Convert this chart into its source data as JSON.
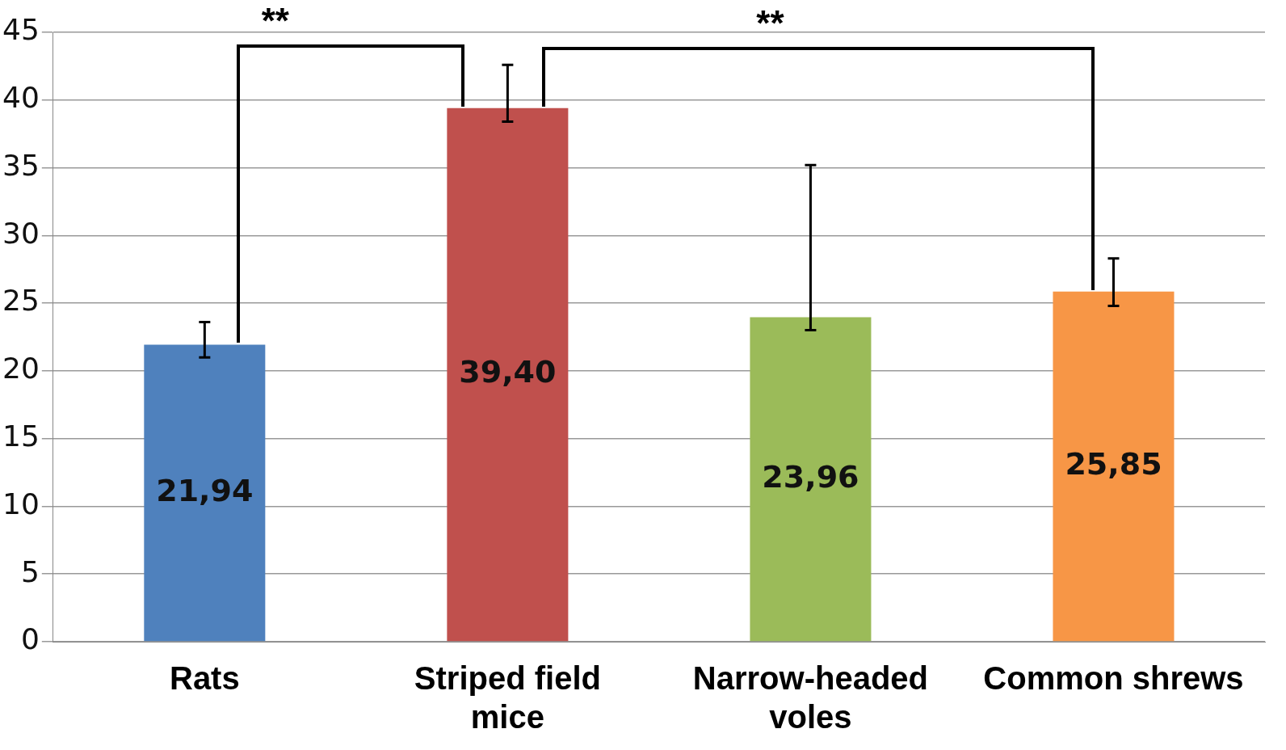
{
  "chart_data": {
    "type": "bar",
    "categories": [
      "Rats",
      "Striped field mice",
      "Narrow-headed voles",
      "Common shrews"
    ],
    "values": [
      21.94,
      39.4,
      23.96,
      25.85
    ],
    "colors": [
      "#4f81bd",
      "#c0504d",
      "#9bbb59",
      "#f79646"
    ],
    "errors": [
      [
        21.0,
        23.6
      ],
      [
        38.4,
        42.6
      ],
      [
        23.0,
        35.2
      ],
      [
        24.8,
        28.3
      ]
    ],
    "value_labels": [
      "21,94",
      "39,40",
      "23,96",
      "25,85"
    ],
    "ylim": [
      0,
      45
    ],
    "yticks": [
      0,
      5,
      10,
      15,
      20,
      25,
      30,
      35,
      40,
      45
    ],
    "grid": "y",
    "legend": false,
    "annotations": [
      "**",
      "**"
    ]
  }
}
